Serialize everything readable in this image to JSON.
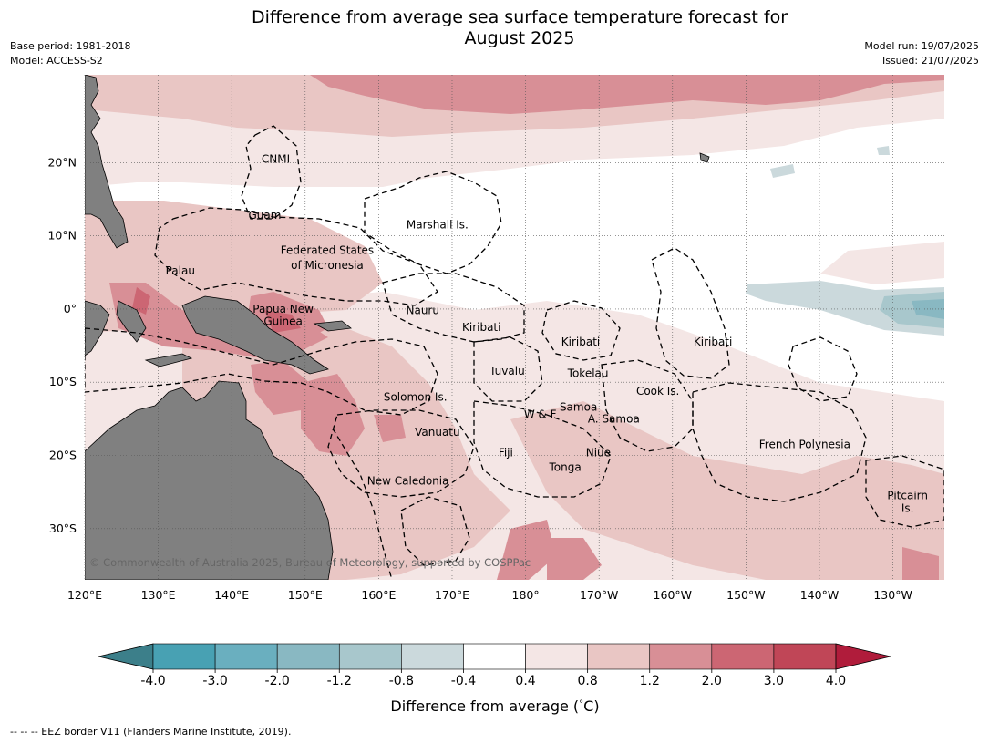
{
  "header": {
    "title_line1": "Difference from average sea surface temperature forecast for",
    "title_line2": "August 2025",
    "base_period": "Base period: 1981-2018",
    "model": "Model: ACCESS-S2",
    "model_run": "Model run: 19/07/2025",
    "issued": "Issued: 21/07/2025"
  },
  "map": {
    "projection": "plate-carree",
    "lon_range": [
      120,
      237
    ],
    "lat_range": [
      -37,
      32
    ],
    "lon_ticks": [
      "120°E",
      "130°E",
      "140°E",
      "150°E",
      "160°E",
      "170°E",
      "180°",
      "170°W",
      "160°W",
      "150°W",
      "140°W",
      "130°W"
    ],
    "lat_ticks": [
      "20°N",
      "10°N",
      "0°",
      "10°S",
      "20°S",
      "30°S"
    ],
    "land_color": "#808080",
    "copyright": "© Commonwealth of Australia 2025, Bureau of Meteorology, supported by COSPPac",
    "labels": [
      {
        "text": "CNMI",
        "lon": 146,
        "lat": 20.5
      },
      {
        "text": "Guam",
        "lon": 144.5,
        "lat": 12.8
      },
      {
        "text": "Marshall Is.",
        "lon": 168,
        "lat": 11.5
      },
      {
        "text": "Federated States",
        "lon": 153,
        "lat": 8
      },
      {
        "text": "of Micronesia",
        "lon": 153,
        "lat": 6
      },
      {
        "text": "Palau",
        "lon": 133,
        "lat": 5.2
      },
      {
        "text": "Papua New",
        "lon": 147,
        "lat": 0
      },
      {
        "text": "Guinea",
        "lon": 147,
        "lat": -1.7
      },
      {
        "text": "Nauru",
        "lon": 166,
        "lat": -0.2
      },
      {
        "text": "Kiribati",
        "lon": 174,
        "lat": -2.5
      },
      {
        "text": "Kiribati",
        "lon": 187.5,
        "lat": -4.5
      },
      {
        "text": "Kiribati",
        "lon": 205.5,
        "lat": -4.5
      },
      {
        "text": "Tuvalu",
        "lon": 177.5,
        "lat": -8.5
      },
      {
        "text": "Tokelau",
        "lon": 188.5,
        "lat": -8.8
      },
      {
        "text": "Solomon Is.",
        "lon": 165,
        "lat": -12
      },
      {
        "text": "Cook Is.",
        "lon": 198,
        "lat": -11.2
      },
      {
        "text": "W & F",
        "lon": 182,
        "lat": -14.4
      },
      {
        "text": "Samoa",
        "lon": 187.2,
        "lat": -13.4
      },
      {
        "text": "A. Samoa",
        "lon": 192,
        "lat": -15
      },
      {
        "text": "Vanuatu",
        "lon": 168,
        "lat": -16.8
      },
      {
        "text": "Fiji",
        "lon": 177.3,
        "lat": -19.6
      },
      {
        "text": "Niue",
        "lon": 189.9,
        "lat": -19.6
      },
      {
        "text": "Tonga",
        "lon": 185.4,
        "lat": -21.6
      },
      {
        "text": "French Polynesia",
        "lon": 218,
        "lat": -18.5
      },
      {
        "text": "New Caledonia",
        "lon": 164,
        "lat": -23.5
      },
      {
        "text": "Pitcairn",
        "lon": 232,
        "lat": -25.5
      },
      {
        "text": "Is.",
        "lon": 232,
        "lat": -27.2
      }
    ]
  },
  "colorbar": {
    "label": "Difference from average (°C)",
    "label_prefix": "Difference from average (",
    "label_unit": "°C",
    "label_suffix": ")",
    "tick_labels": [
      "-4.0",
      "-3.0",
      "-2.0",
      "-1.2",
      "-0.8",
      "-0.4",
      "0.4",
      "0.8",
      "1.2",
      "2.0",
      "3.0",
      "4.0"
    ],
    "colors": [
      "#3c7f8a",
      "#48a1b3",
      "#6aafbf",
      "#89b8c2",
      "#a8c7cc",
      "#cbd9dc",
      "#ffffff",
      "#f4e6e5",
      "#e9c6c4",
      "#d88f96",
      "#cc6673",
      "#c04657",
      "#b01c3b"
    ]
  },
  "footnote": "--  --  -- EEZ border V11 (Flanders Marine Institute, 2019)."
}
